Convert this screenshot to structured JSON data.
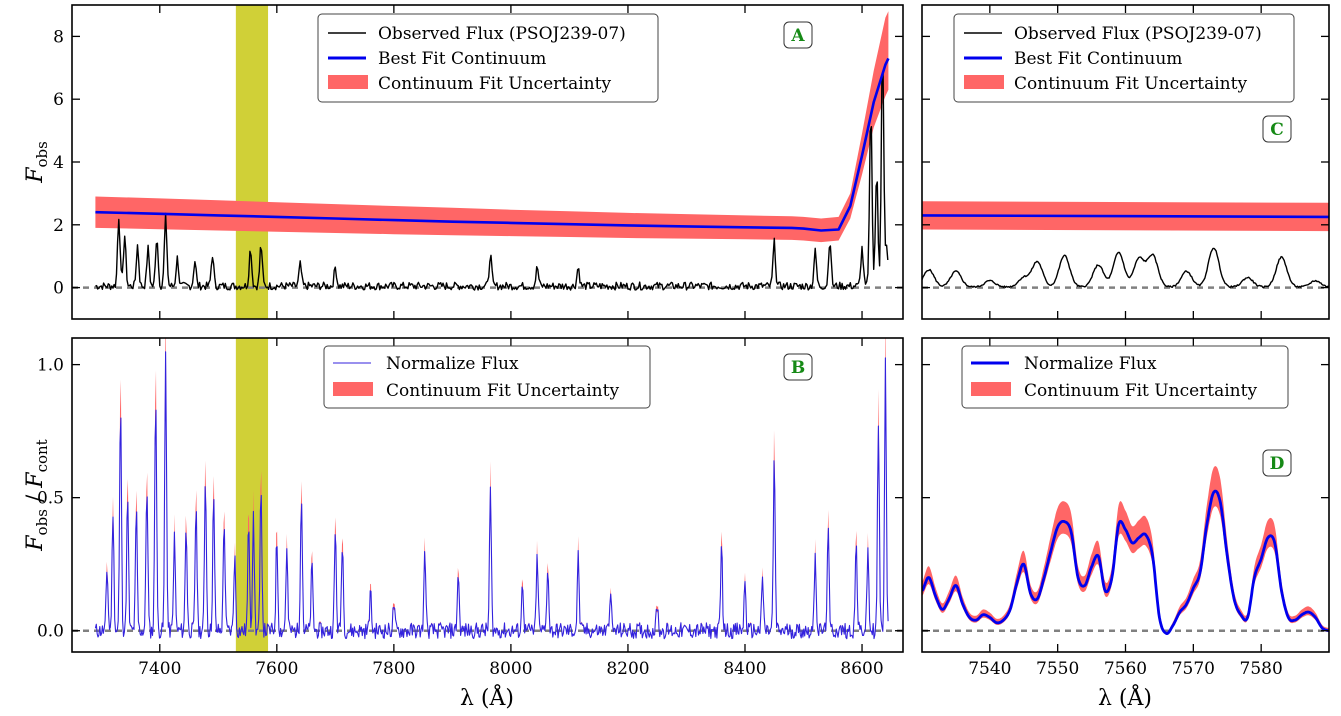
{
  "figure": {
    "ylabel_top": "F_obs",
    "ylabel_bottom": "F_obs / F_cont",
    "xlabel": "λ (Å)"
  },
  "colors": {
    "observed": "#000000",
    "continuum": "#0000ee",
    "uncertainty": "#ff6666",
    "normalized": "#3322dd",
    "highlight": "#c8c814",
    "zero_line": "#808080",
    "panel_label": "#168a16"
  },
  "chart_data": [
    {
      "panel": "A",
      "type": "line",
      "xlim": [
        7250,
        8670
      ],
      "ylim": [
        -1.0,
        9.0
      ],
      "xticks": [
        7400,
        7600,
        7800,
        8000,
        8200,
        8400,
        8600
      ],
      "yticks": [
        0,
        2,
        4,
        6,
        8
      ],
      "xticklabels_shown": false,
      "highlight_band": [
        7530,
        7585
      ],
      "zero_line": 0,
      "legend": [
        "Observed Flux (PSOJ239-07)",
        "Best Fit Continuum",
        "Continuum Fit Uncertainty"
      ],
      "continuum": {
        "x": [
          7290,
          7400,
          7500,
          7600,
          7700,
          7800,
          7900,
          8000,
          8100,
          8200,
          8300,
          8400,
          8480,
          8500,
          8530,
          8560,
          8580,
          8600,
          8620,
          8640,
          8645
        ],
        "y": [
          2.4,
          2.35,
          2.3,
          2.25,
          2.2,
          2.15,
          2.1,
          2.06,
          2.02,
          1.98,
          1.95,
          1.92,
          1.9,
          1.88,
          1.82,
          1.85,
          2.6,
          4.2,
          5.9,
          7.1,
          7.3
        ]
      },
      "uncertainty": {
        "x": [
          7290,
          7400,
          7500,
          7600,
          7700,
          7800,
          7900,
          8000,
          8100,
          8200,
          8300,
          8400,
          8480,
          8500,
          8530,
          8560,
          8580,
          8600,
          8620,
          8640,
          8645
        ],
        "lower": [
          1.9,
          1.86,
          1.82,
          1.78,
          1.74,
          1.7,
          1.67,
          1.64,
          1.61,
          1.58,
          1.56,
          1.54,
          1.52,
          1.5,
          1.45,
          1.5,
          2.2,
          3.6,
          5.1,
          6.1,
          6.3
        ],
        "upper": [
          2.9,
          2.84,
          2.78,
          2.72,
          2.66,
          2.6,
          2.54,
          2.48,
          2.43,
          2.38,
          2.34,
          2.3,
          2.27,
          2.25,
          2.2,
          2.25,
          3.0,
          4.9,
          6.9,
          8.6,
          8.8
        ]
      },
      "observed_peaks": [
        {
          "x": 7330,
          "y": 2.2
        },
        {
          "x": 7340,
          "y": 1.6
        },
        {
          "x": 7362,
          "y": 1.3
        },
        {
          "x": 7380,
          "y": 1.2
        },
        {
          "x": 7395,
          "y": 1.6
        },
        {
          "x": 7410,
          "y": 2.2
        },
        {
          "x": 7430,
          "y": 0.9
        },
        {
          "x": 7460,
          "y": 0.8
        },
        {
          "x": 7490,
          "y": 1.0
        },
        {
          "x": 7555,
          "y": 1.2
        },
        {
          "x": 7573,
          "y": 1.3
        },
        {
          "x": 7640,
          "y": 0.7
        },
        {
          "x": 7700,
          "y": 0.6
        },
        {
          "x": 7965,
          "y": 1.0
        },
        {
          "x": 8045,
          "y": 0.6
        },
        {
          "x": 8115,
          "y": 0.6
        },
        {
          "x": 8450,
          "y": 1.4
        },
        {
          "x": 8520,
          "y": 1.1
        },
        {
          "x": 8545,
          "y": 1.5
        },
        {
          "x": 8600,
          "y": 1.2
        },
        {
          "x": 8615,
          "y": 5.6
        },
        {
          "x": 8625,
          "y": 3.6
        },
        {
          "x": 8635,
          "y": 7.6
        },
        {
          "x": 8642,
          "y": 1.2
        }
      ]
    },
    {
      "panel": "B",
      "type": "line",
      "xlim": [
        7250,
        8670
      ],
      "ylim": [
        -0.08,
        1.1
      ],
      "xticks": [
        7400,
        7600,
        7800,
        8000,
        8200,
        8400,
        8600
      ],
      "yticks": [
        0.0,
        0.5,
        1.0
      ],
      "highlight_band": [
        7530,
        7585
      ],
      "zero_line": 0,
      "legend": [
        "Normalize Flux",
        "Continuum Fit Uncertainty"
      ],
      "normalized_peaks": [
        {
          "x": 7310,
          "y": 0.23
        },
        {
          "x": 7320,
          "y": 0.45
        },
        {
          "x": 7333,
          "y": 0.85
        },
        {
          "x": 7345,
          "y": 0.5
        },
        {
          "x": 7360,
          "y": 0.45
        },
        {
          "x": 7378,
          "y": 0.55
        },
        {
          "x": 7393,
          "y": 0.9
        },
        {
          "x": 7410,
          "y": 1.05
        },
        {
          "x": 7425,
          "y": 0.35
        },
        {
          "x": 7445,
          "y": 0.4
        },
        {
          "x": 7462,
          "y": 0.48
        },
        {
          "x": 7478,
          "y": 0.58
        },
        {
          "x": 7492,
          "y": 0.5
        },
        {
          "x": 7510,
          "y": 0.42
        },
        {
          "x": 7528,
          "y": 0.28
        },
        {
          "x": 7552,
          "y": 0.41
        },
        {
          "x": 7560,
          "y": 0.42
        },
        {
          "x": 7573,
          "y": 0.52
        },
        {
          "x": 7600,
          "y": 0.35
        },
        {
          "x": 7617,
          "y": 0.3
        },
        {
          "x": 7642,
          "y": 0.52
        },
        {
          "x": 7660,
          "y": 0.25
        },
        {
          "x": 7700,
          "y": 0.38
        },
        {
          "x": 7712,
          "y": 0.34
        },
        {
          "x": 7760,
          "y": 0.15
        },
        {
          "x": 7800,
          "y": 0.1
        },
        {
          "x": 7853,
          "y": 0.3
        },
        {
          "x": 7910,
          "y": 0.22
        },
        {
          "x": 7965,
          "y": 0.52
        },
        {
          "x": 8020,
          "y": 0.18
        },
        {
          "x": 8045,
          "y": 0.28
        },
        {
          "x": 8063,
          "y": 0.25
        },
        {
          "x": 8115,
          "y": 0.28
        },
        {
          "x": 8170,
          "y": 0.15
        },
        {
          "x": 8250,
          "y": 0.1
        },
        {
          "x": 8360,
          "y": 0.32
        },
        {
          "x": 8400,
          "y": 0.18
        },
        {
          "x": 8430,
          "y": 0.2
        },
        {
          "x": 8450,
          "y": 0.65
        },
        {
          "x": 8520,
          "y": 0.3
        },
        {
          "x": 8542,
          "y": 0.38
        },
        {
          "x": 8590,
          "y": 0.33
        },
        {
          "x": 8610,
          "y": 0.3
        },
        {
          "x": 8628,
          "y": 0.78
        },
        {
          "x": 8640,
          "y": 1.0
        }
      ]
    },
    {
      "panel": "C",
      "type": "line",
      "xlim": [
        7530,
        7590
      ],
      "ylim": [
        -1.0,
        9.0
      ],
      "xticks": [
        7540,
        7550,
        7560,
        7570,
        7580
      ],
      "yticks": [
        0,
        2,
        4,
        6,
        8
      ],
      "tick_labels_shown": false,
      "zero_line": 0,
      "legend": [
        "Observed Flux (PSOJ239-07)",
        "Best Fit Continuum",
        "Continuum Fit Uncertainty"
      ],
      "continuum": {
        "x": [
          7530,
          7590
        ],
        "y": [
          2.3,
          2.25
        ]
      },
      "uncertainty": {
        "x": [
          7530,
          7590
        ],
        "lower": [
          1.85,
          1.8
        ],
        "upper": [
          2.75,
          2.7
        ]
      },
      "observed_peaks": [
        {
          "x": 7531,
          "y": 0.55
        },
        {
          "x": 7535,
          "y": 0.5
        },
        {
          "x": 7540,
          "y": 0.2
        },
        {
          "x": 7545,
          "y": 0.3
        },
        {
          "x": 7547,
          "y": 0.8
        },
        {
          "x": 7551,
          "y": 1.0
        },
        {
          "x": 7556,
          "y": 0.7
        },
        {
          "x": 7559,
          "y": 1.1
        },
        {
          "x": 7562,
          "y": 0.9
        },
        {
          "x": 7564,
          "y": 1.0
        },
        {
          "x": 7569,
          "y": 0.5
        },
        {
          "x": 7573,
          "y": 1.25
        },
        {
          "x": 7578,
          "y": 0.3
        },
        {
          "x": 7583,
          "y": 0.95
        },
        {
          "x": 7588,
          "y": 0.2
        }
      ]
    },
    {
      "panel": "D",
      "type": "line",
      "xlim": [
        7530,
        7590
      ],
      "ylim": [
        -0.08,
        1.1
      ],
      "xticks": [
        7540,
        7550,
        7560,
        7570,
        7580
      ],
      "yticks": [
        0.0,
        0.5,
        1.0
      ],
      "yticklabels_shown": false,
      "zero_line": 0,
      "legend": [
        "Normalize Flux",
        "Continuum Fit Uncertainty"
      ],
      "normalized": {
        "x": [
          7530,
          7531,
          7532,
          7533,
          7534,
          7535,
          7536,
          7537,
          7538,
          7539,
          7540,
          7541,
          7542,
          7543,
          7544,
          7545,
          7546,
          7547,
          7548,
          7549,
          7550,
          7551,
          7552,
          7553,
          7554,
          7555,
          7556,
          7557,
          7558,
          7559,
          7560,
          7561,
          7562,
          7563,
          7564,
          7565,
          7566,
          7567,
          7568,
          7569,
          7570,
          7571,
          7572,
          7573,
          7574,
          7575,
          7576,
          7577,
          7578,
          7579,
          7580,
          7581,
          7582,
          7583,
          7584,
          7585,
          7586,
          7587,
          7588,
          7589,
          7590
        ],
        "y": [
          0.15,
          0.2,
          0.13,
          0.08,
          0.12,
          0.17,
          0.1,
          0.05,
          0.04,
          0.06,
          0.05,
          0.03,
          0.04,
          0.08,
          0.18,
          0.25,
          0.14,
          0.12,
          0.2,
          0.3,
          0.39,
          0.41,
          0.37,
          0.2,
          0.17,
          0.24,
          0.28,
          0.15,
          0.2,
          0.4,
          0.38,
          0.33,
          0.35,
          0.36,
          0.28,
          0.05,
          -0.01,
          0.02,
          0.07,
          0.1,
          0.16,
          0.22,
          0.4,
          0.52,
          0.48,
          0.28,
          0.12,
          0.06,
          0.05,
          0.2,
          0.27,
          0.35,
          0.33,
          0.15,
          0.05,
          0.04,
          0.06,
          0.07,
          0.05,
          0.01,
          0.0
        ]
      }
    }
  ]
}
